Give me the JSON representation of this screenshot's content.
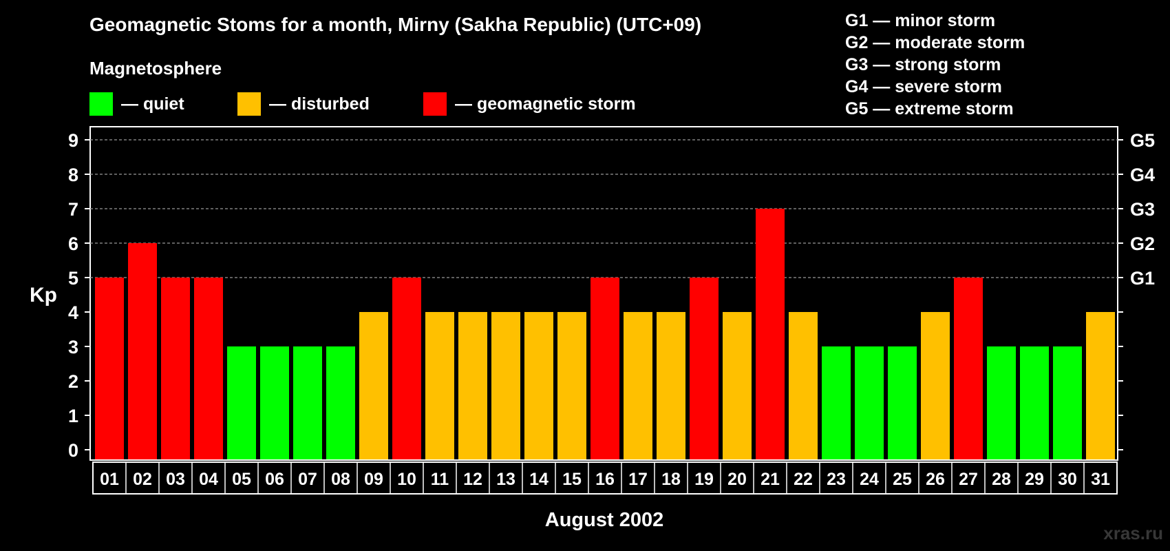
{
  "title": "Geomagnetic Stoms for a month, Mirny (Sakha Republic) (UTC+09)",
  "magnetosphere_title": "Magnetosphere",
  "legend": [
    {
      "label": "— quiet",
      "color": "#00ff00"
    },
    {
      "label": "— disturbed",
      "color": "#ffc000"
    },
    {
      "label": "— geomagnetic storm",
      "color": "#ff0000"
    }
  ],
  "g_scale": [
    "G1 — minor storm",
    "G2 — moderate storm",
    "G3 — strong storm",
    "G4 — severe storm",
    "G5 — extreme storm"
  ],
  "watermark": "xras.ru",
  "colors": {
    "quiet": "#00ff00",
    "disturbed": "#ffc000",
    "storm": "#ff0000"
  },
  "chart_data": {
    "type": "bar",
    "xlabel": "August 2002",
    "ylabel": "Kp",
    "ylim": [
      0,
      9
    ],
    "yticks": [
      "0",
      "1",
      "2",
      "3",
      "4",
      "5",
      "6",
      "7",
      "8",
      "9"
    ],
    "right_axis_labels": [
      {
        "kp": 5,
        "label": "G1"
      },
      {
        "kp": 6,
        "label": "G2"
      },
      {
        "kp": 7,
        "label": "G3"
      },
      {
        "kp": 8,
        "label": "G4"
      },
      {
        "kp": 9,
        "label": "G5"
      }
    ],
    "grid": "dashed horizontal lines at Kp 5–9",
    "categories": [
      "01",
      "02",
      "03",
      "04",
      "05",
      "06",
      "07",
      "08",
      "09",
      "10",
      "11",
      "12",
      "13",
      "14",
      "15",
      "16",
      "17",
      "18",
      "19",
      "20",
      "21",
      "22",
      "23",
      "24",
      "25",
      "26",
      "27",
      "28",
      "29",
      "30",
      "31"
    ],
    "values": [
      5,
      6,
      5,
      5,
      3,
      3,
      3,
      3,
      4,
      5,
      4,
      4,
      4,
      4,
      4,
      5,
      4,
      4,
      5,
      4,
      7,
      4,
      3,
      3,
      3,
      4,
      5,
      3,
      3,
      3,
      4
    ],
    "color_rule": "Kp < 4 quiet (green), Kp = 4 disturbed (yellow), Kp >= 5 geomagnetic storm (red)"
  }
}
